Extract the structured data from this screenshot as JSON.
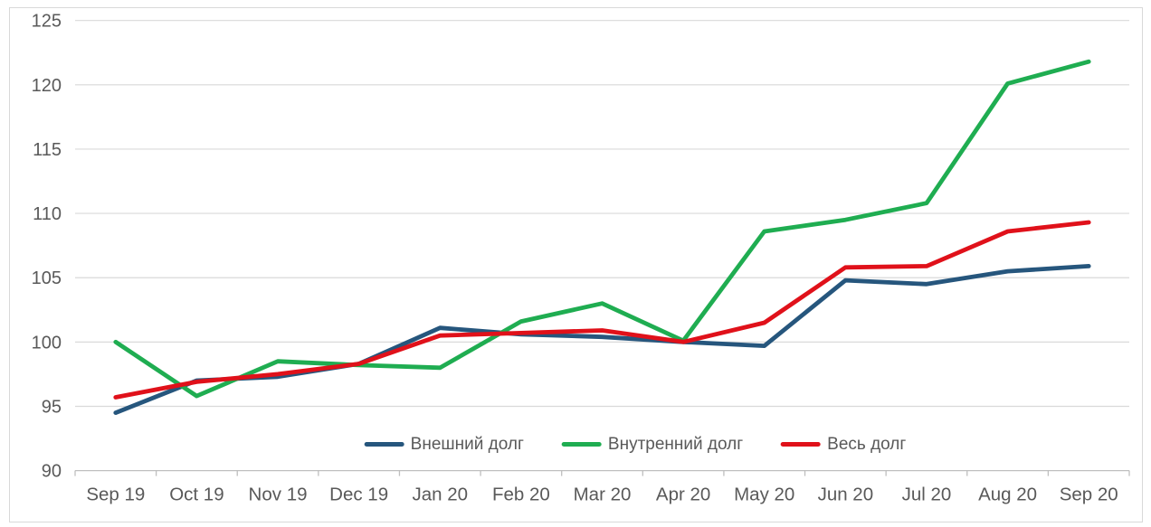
{
  "chart_data": {
    "type": "line",
    "title": "",
    "xlabel": "",
    "ylabel": "",
    "categories": [
      "Sep 19",
      "Oct 19",
      "Nov 19",
      "Dec 19",
      "Jan 20",
      "Feb 20",
      "Mar 20",
      "Apr 20",
      "May 20",
      "Jun 20",
      "Jul 20",
      "Aug 20",
      "Sep 20"
    ],
    "series": [
      {
        "name": "Внешний долг",
        "color": "#26567D",
        "values": [
          94.5,
          97.0,
          97.3,
          98.3,
          101.1,
          100.6,
          100.4,
          100.0,
          99.7,
          104.8,
          104.5,
          105.5,
          105.9
        ]
      },
      {
        "name": "Внутренний долг",
        "color": "#1FAD51",
        "values": [
          100.0,
          95.8,
          98.5,
          98.2,
          98.0,
          101.6,
          103.0,
          100.1,
          108.6,
          109.5,
          110.8,
          120.1,
          121.8
        ]
      },
      {
        "name": "Весь долг",
        "color": "#E0111A",
        "values": [
          95.7,
          96.9,
          97.5,
          98.3,
          100.5,
          100.7,
          100.9,
          100.0,
          101.5,
          105.8,
          105.9,
          108.6,
          109.3
        ]
      }
    ],
    "ylim": [
      90,
      125
    ],
    "yticks": [
      90,
      95,
      100,
      105,
      110,
      115,
      120,
      125
    ],
    "grid": true,
    "legend_position": "bottom-center",
    "colors": {
      "gridline": "#D9D9D9",
      "axis": "#BFBFBF",
      "tick_label": "#595959",
      "legend_text": "#595959",
      "frame_border": "#D9D9D9",
      "background": "#FFFFFF"
    }
  }
}
